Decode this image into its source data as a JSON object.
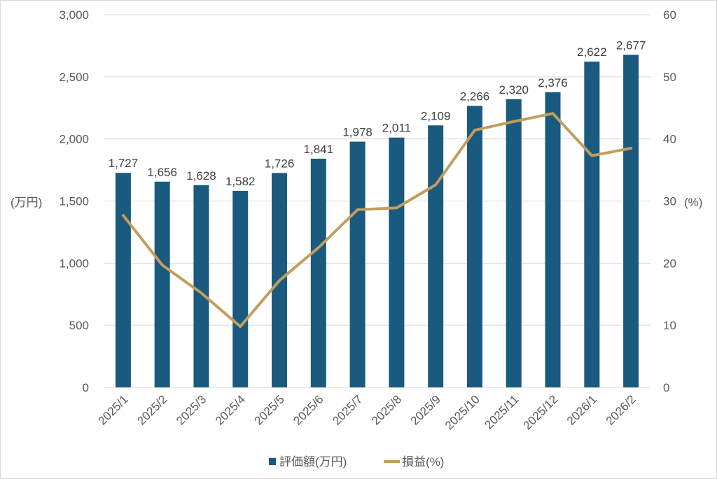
{
  "chart_data": {
    "type": "bar",
    "categories": [
      "2025/1",
      "2025/2",
      "2025/3",
      "2025/4",
      "2025/5",
      "2025/6",
      "2025/7",
      "2025/8",
      "2025/9",
      "2025/10",
      "2025/11",
      "2025/12",
      "2026/1",
      "2026/2"
    ],
    "series": [
      {
        "name": "評価額(万円)",
        "type": "bar",
        "axis": "left",
        "color": "#1a5a7e",
        "values": [
          1727,
          1656,
          1628,
          1582,
          1726,
          1841,
          1978,
          2011,
          2109,
          2266,
          2320,
          2376,
          2622,
          2677
        ],
        "labels": [
          "1,727",
          "1,656",
          "1,628",
          "1,582",
          "1,726",
          "1,841",
          "1,978",
          "2,011",
          "2,109",
          "2,266",
          "2,320",
          "2,376",
          "2,622",
          "2,677"
        ]
      },
      {
        "name": "損益(%)",
        "type": "line",
        "axis": "right",
        "color": "#c29d5e",
        "values": [
          27.7,
          19.7,
          15.2,
          9.8,
          17.2,
          22.5,
          28.6,
          28.9,
          32.6,
          41.4,
          42.8,
          44.1,
          37.3,
          38.5
        ]
      }
    ],
    "y_left": {
      "unit_label": "(万円)",
      "ylim": [
        0,
        3000
      ],
      "ticks": [
        0,
        500,
        1000,
        1500,
        2000,
        2500,
        3000
      ],
      "tick_labels": [
        "0",
        "500",
        "1,000",
        "1,500",
        "2,000",
        "2,500",
        "3,000"
      ]
    },
    "y_right": {
      "unit_label": "(%)",
      "ylim": [
        0,
        60
      ],
      "ticks": [
        0,
        10,
        20,
        30,
        40,
        50,
        60
      ],
      "tick_labels": [
        "0",
        "10",
        "20",
        "30",
        "40",
        "50",
        "60"
      ]
    },
    "grid": true,
    "legend": "bottom"
  }
}
